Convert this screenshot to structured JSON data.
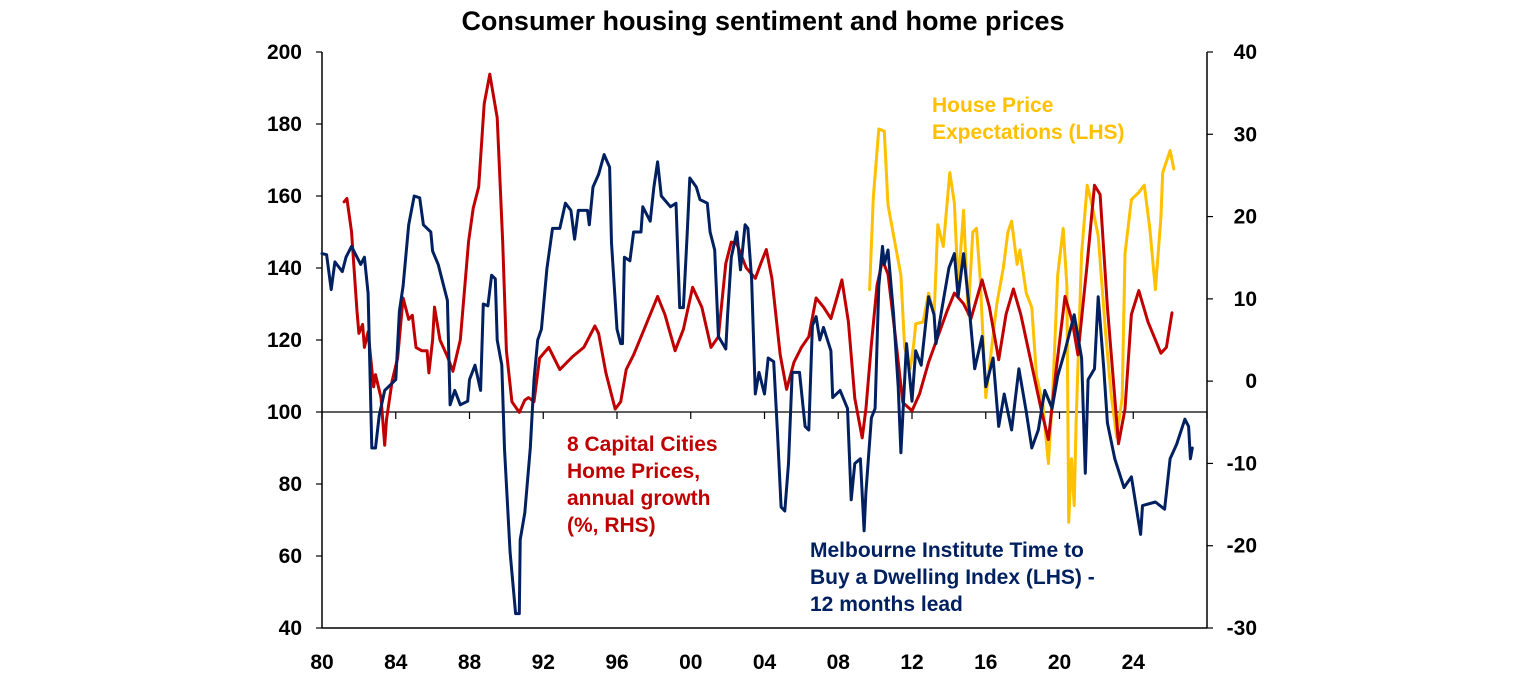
{
  "chart_data": {
    "type": "line",
    "title": "Consumer housing sentiment and home prices",
    "x_tick_labels": [
      "80",
      "84",
      "88",
      "92",
      "96",
      "00",
      "04",
      "08",
      "12",
      "16",
      "20",
      "24"
    ],
    "x_ticks": [
      1980,
      1984,
      1988,
      1992,
      1996,
      2000,
      2004,
      2008,
      2012,
      2016,
      2020,
      2024
    ],
    "xlim": [
      1980,
      2028
    ],
    "left_axis": {
      "ylim": [
        40,
        200
      ],
      "ticks": [
        40,
        60,
        80,
        100,
        120,
        140,
        160,
        180,
        200
      ]
    },
    "right_axis": {
      "ylim": [
        -30,
        40
      ],
      "ticks": [
        -30,
        -20,
        -10,
        0,
        10,
        20,
        30,
        40
      ]
    },
    "reference_line": {
      "axis": "left",
      "value": 100
    },
    "grid": false,
    "series": [
      {
        "name": "House Price Expectations (LHS)",
        "label_lines": [
          "House Price",
          "Expectations (LHS)"
        ],
        "axis": "left",
        "color": "#FFC000",
        "x": [
          2009.7,
          2009.9,
          2010.2,
          2010.5,
          2010.7,
          2011.0,
          2011.4,
          2011.6,
          2011.9,
          2012.1,
          2012.2,
          2012.6,
          2012.9,
          2013.2,
          2013.4,
          2013.7,
          2014.05,
          2014.3,
          2014.5,
          2014.8,
          2015.05,
          2015.3,
          2015.5,
          2015.7,
          2016.0,
          2016.3,
          2016.6,
          2016.95,
          2017.2,
          2017.4,
          2017.7,
          2017.85,
          2018.2,
          2018.5,
          2018.75,
          2019.1,
          2019.4,
          2019.65,
          2019.9,
          2020.2,
          2020.4,
          2020.5,
          2020.65,
          2020.8,
          2020.9,
          2021.2,
          2021.5,
          2021.7,
          2022.1,
          2022.5,
          2022.8,
          2023.1,
          2023.4,
          2023.55,
          2023.9,
          2024.3,
          2024.6,
          2024.9,
          2025.2,
          2025.5,
          2025.6,
          2026.0,
          2026.2
        ],
        "y": [
          134,
          159.5,
          178.6,
          178,
          157.5,
          149,
          138,
          118,
          112,
          119,
          124.5,
          125,
          133,
          127,
          152,
          146,
          166.5,
          158,
          135,
          156,
          127,
          150,
          151,
          137,
          104,
          117,
          130,
          140,
          150,
          153,
          141,
          145,
          133,
          129,
          110,
          102,
          85.7,
          107,
          138,
          151,
          135,
          69.4,
          87,
          74,
          97,
          144,
          163,
          159,
          149,
          122,
          105,
          93,
          104,
          144,
          159,
          161,
          163,
          151,
          134,
          154,
          166.5,
          172.6,
          167.5
        ]
      },
      {
        "name": "8 Capital Cities Home Prices, annual growth (%, RHS)",
        "label_lines": [
          "8 Capital Cities",
          "Home Prices,",
          "annual growth",
          "(%, RHS)"
        ],
        "axis": "right",
        "color": "#C00000",
        "x": [
          1981.2,
          1981.35,
          1981.6,
          1981.9,
          1982.0,
          1982.2,
          1982.3,
          1982.5,
          1982.8,
          1982.9,
          1983.2,
          1983.4,
          1983.5,
          1983.8,
          1984.1,
          1984.4,
          1984.7,
          1984.9,
          1985.1,
          1985.4,
          1985.7,
          1985.8,
          1986.0,
          1986.1,
          1986.4,
          1986.8,
          1987.1,
          1987.5,
          1987.95,
          1988.2,
          1988.5,
          1988.8,
          1989.1,
          1989.5,
          1989.8,
          1990.0,
          1990.3,
          1990.7,
          1991.0,
          1991.2,
          1991.5,
          1991.8,
          1992.3,
          1992.9,
          1993.6,
          1994.2,
          1994.8,
          1995.0,
          1995.4,
          1995.9,
          1996.2,
          1996.5,
          1996.9,
          1997.4,
          1998.2,
          1998.6,
          1999.15,
          1999.6,
          2000.1,
          2000.6,
          2001.1,
          2001.5,
          2001.9,
          2002.2,
          2002.5,
          2003.0,
          2003.5,
          2003.8,
          2004.1,
          2004.4,
          2004.85,
          2005.2,
          2005.6,
          2006.0,
          2006.4,
          2006.8,
          2007.2,
          2007.6,
          2007.9,
          2008.2,
          2008.55,
          2008.9,
          2009.3,
          2009.5,
          2009.8,
          2010.1,
          2010.4,
          2010.7,
          2011.1,
          2011.5,
          2012.0,
          2012.4,
          2012.9,
          2013.4,
          2013.9,
          2014.3,
          2014.8,
          2015.2,
          2015.8,
          2016.2,
          2016.7,
          2017.1,
          2017.5,
          2017.9,
          2018.5,
          2019.0,
          2019.4,
          2019.8,
          2020.3,
          2020.7,
          2021.0,
          2021.5,
          2021.9,
          2022.2,
          2022.6,
          2023.2,
          2023.55,
          2023.9,
          2024.3,
          2024.8,
          2025.5,
          2025.8,
          2026.1
        ],
        "y": [
          21.8,
          22.2,
          18.2,
          8.5,
          5.8,
          6.9,
          4.1,
          6,
          -0.7,
          0.8,
          -2,
          -7.8,
          -4.7,
          0,
          2.8,
          10.1,
          7.5,
          8,
          4.1,
          3.7,
          3.7,
          1,
          5,
          9,
          5,
          3,
          1.2,
          5,
          17,
          21,
          23.6,
          33.7,
          37.3,
          32,
          16.9,
          3.7,
          -2.5,
          -3.8,
          -2.3,
          -2,
          -2.5,
          2.8,
          4.1,
          1.4,
          3,
          4.1,
          6.7,
          5.8,
          1,
          -3.4,
          -2.5,
          1.4,
          3.2,
          5.9,
          10.3,
          8.1,
          3.7,
          6.3,
          11.4,
          9,
          4.1,
          5.4,
          14.3,
          16.9,
          16.7,
          13.8,
          12.5,
          14.3,
          16,
          12.5,
          3.2,
          -1,
          2.3,
          4.1,
          5.4,
          10.1,
          9,
          7.6,
          9.9,
          12.3,
          7.2,
          -2.1,
          -6.9,
          -3.4,
          4.5,
          11.6,
          14.7,
          13,
          5.4,
          -2.6,
          -3.6,
          -1.6,
          2.3,
          5.4,
          8.5,
          10.7,
          9.4,
          7.6,
          12.3,
          9,
          2.6,
          8.1,
          11.2,
          8.1,
          1.9,
          -3.4,
          -7.1,
          1,
          10.3,
          7.2,
          3.2,
          14.3,
          23.8,
          22.7,
          9,
          -7.6,
          -3.4,
          8.1,
          11,
          7.2,
          3.4,
          4.1,
          8.3
        ]
      },
      {
        "name": "Melbourne Institute Time to Buy a Dwelling Index (LHS) - 12 months lead",
        "label_lines": [
          "Melbourne Institute Time to",
          "Buy a Dwelling Index (LHS) -",
          "12 months lead"
        ],
        "axis": "left",
        "color": "#002060",
        "x": [
          1980.0,
          1980.25,
          1980.5,
          1980.7,
          1981.1,
          1981.3,
          1981.6,
          1982.1,
          1982.3,
          1982.5,
          1982.7,
          1982.9,
          1983.1,
          1983.4,
          1984.0,
          1984.2,
          1984.4,
          1984.7,
          1985.0,
          1985.3,
          1985.5,
          1985.9,
          1986.0,
          1986.3,
          1986.6,
          1986.8,
          1986.95,
          1987.2,
          1987.5,
          1987.9,
          1988.0,
          1988.3,
          1988.6,
          1988.75,
          1989.0,
          1989.2,
          1989.4,
          1989.5,
          1989.75,
          1989.9,
          1990.2,
          1990.5,
          1990.7,
          1990.75,
          1991.0,
          1991.3,
          1991.5,
          1991.7,
          1991.9,
          1992.2,
          1992.5,
          1992.9,
          1993.2,
          1993.5,
          1993.7,
          1993.9,
          1994.4,
          1994.5,
          1994.7,
          1995.0,
          1995.3,
          1995.6,
          1995.7,
          1996.0,
          1996.2,
          1996.3,
          1996.4,
          1996.7,
          1996.9,
          1997.3,
          1997.4,
          1997.8,
          1998.0,
          1998.2,
          1998.4,
          1998.9,
          1999.2,
          1999.4,
          1999.6,
          1999.8,
          1999.95,
          2000.3,
          2000.5,
          2000.9,
          2001.05,
          2001.3,
          2001.5,
          2001.9,
          2002.0,
          2002.2,
          2002.5,
          2002.7,
          2002.95,
          2003.1,
          2003.3,
          2003.5,
          2003.7,
          2004.0,
          2004.2,
          2004.5,
          2004.7,
          2004.9,
          2005.1,
          2005.3,
          2005.5,
          2005.9,
          2006.2,
          2006.4,
          2006.6,
          2006.8,
          2007.0,
          2007.2,
          2007.6,
          2007.7,
          2008.1,
          2008.5,
          2008.7,
          2008.9,
          2009.2,
          2009.4,
          2009.5,
          2009.8,
          2010.0,
          2010.2,
          2010.4,
          2010.5,
          2010.7,
          2011.0,
          2011.25,
          2011.4,
          2011.7,
          2012.0,
          2012.2,
          2012.5,
          2012.9,
          2013.2,
          2013.3,
          2013.6,
          2014.0,
          2014.3,
          2014.5,
          2014.8,
          2015.1,
          2015.4,
          2015.8,
          2016.0,
          2016.4,
          2016.7,
          2017.0,
          2017.4,
          2017.8,
          2018.2,
          2018.5,
          2018.85,
          2019.2,
          2019.6,
          2019.9,
          2020.3,
          2020.8,
          2021.2,
          2021.4,
          2021.55,
          2021.9,
          2022.1,
          2022.4,
          2022.6,
          2023.0,
          2023.5,
          2023.9,
          2024.4,
          2024.5,
          2025.2,
          2025.7,
          2026.0,
          2026.35,
          2026.8,
          2027.0,
          2027.1,
          2027.2
        ],
        "y": [
          144,
          143.7,
          134,
          141.7,
          139,
          143,
          146,
          141,
          143,
          133,
          90,
          90,
          99,
          106,
          109,
          128,
          135,
          152,
          160,
          159.5,
          152,
          150,
          144.7,
          141,
          135,
          131,
          102,
          106,
          102,
          103,
          109,
          113,
          106,
          130,
          129.5,
          138,
          137,
          120,
          113,
          89.7,
          61,
          44,
          44,
          64.5,
          72,
          90,
          109,
          120,
          123,
          139.8,
          151,
          151,
          158,
          156,
          148,
          156,
          156,
          152,
          162.5,
          166,
          171.5,
          168,
          147,
          123,
          119,
          119,
          143,
          142,
          150,
          150,
          157,
          153,
          162.5,
          169.5,
          160,
          157,
          158,
          129,
          129,
          149,
          165,
          162.5,
          159,
          158,
          150,
          145,
          121,
          117.5,
          127,
          143,
          150,
          139.5,
          152,
          151,
          137,
          105,
          111,
          105,
          115,
          114,
          94.7,
          73.6,
          72.5,
          85.7,
          111,
          111,
          96,
          95,
          124,
          126.5,
          120,
          123.5,
          117,
          104,
          106,
          101,
          75.6,
          85.7,
          87,
          67,
          77.6,
          98.4,
          101,
          135,
          146,
          141,
          145,
          127,
          107,
          88.7,
          119,
          103,
          117,
          113,
          132,
          127,
          119,
          128,
          140,
          144,
          132,
          144,
          129,
          112,
          121,
          107,
          115,
          96,
          105,
          95,
          112,
          100,
          90,
          95,
          106,
          101,
          110,
          117,
          127,
          115,
          83,
          109,
          112,
          132,
          112,
          97,
          87,
          79,
          82,
          66,
          74,
          75,
          73,
          87,
          91,
          98,
          96,
          87,
          90
        ]
      }
    ]
  }
}
